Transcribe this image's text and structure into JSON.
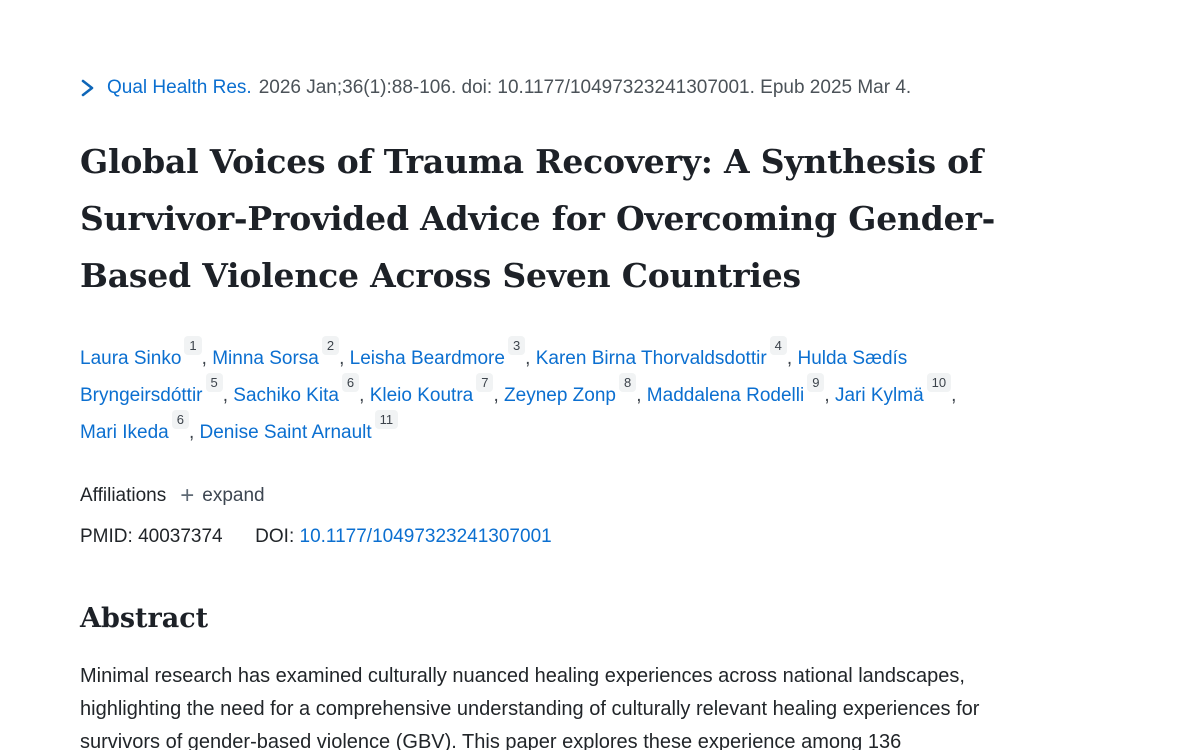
{
  "colors": {
    "link_blue": "#0b6fd0",
    "body_text": "#212529",
    "citation_gray": "#4b5258",
    "badge_bg": "#f1f3f4"
  },
  "icons": {
    "journal_chevron": "chevron-right",
    "expand_plus": "plus"
  },
  "citation": {
    "journal": "Qual Health Res.",
    "details": "2026 Jan;36(1):88-106. doi: 10.1177/10497323241307001. Epub 2025 Mar 4."
  },
  "title": "Global Voices of Trauma Recovery: A Synthesis of Survivor-Provided Advice for Overcoming Gender-Based Violence Across Seven Countries",
  "authors": [
    {
      "name": "Laura Sinko",
      "sup": "1"
    },
    {
      "name": "Minna Sorsa",
      "sup": "2"
    },
    {
      "name": "Leisha Beardmore",
      "sup": "3"
    },
    {
      "name": "Karen Birna Thorvaldsdottir",
      "sup": "4"
    },
    {
      "name": "Hulda Sædís Bryngeirsdóttir",
      "sup": "5"
    },
    {
      "name": "Sachiko Kita",
      "sup": "6"
    },
    {
      "name": "Kleio Koutra",
      "sup": "7"
    },
    {
      "name": "Zeynep Zonp",
      "sup": "8"
    },
    {
      "name": "Maddalena Rodelli",
      "sup": "9"
    },
    {
      "name": "Jari Kylmä",
      "sup": "10"
    },
    {
      "name": "Mari Ikeda",
      "sup": "6"
    },
    {
      "name": "Denise Saint Arnault",
      "sup": "11"
    }
  ],
  "affiliations": {
    "label": "Affiliations",
    "expand_label": "expand",
    "plus_glyph": "+"
  },
  "ids": {
    "pmid_label": "PMID:",
    "pmid": "40037374",
    "doi_label": "DOI:",
    "doi": "10.1177/10497323241307001"
  },
  "abstract": {
    "heading": "Abstract",
    "text": "Minimal research has examined culturally nuanced healing experiences across national landscapes, highlighting the need for a comprehensive understanding of culturally relevant healing experiences for survivors of gender-based violence (GBV). This paper explores these experience among 136"
  }
}
